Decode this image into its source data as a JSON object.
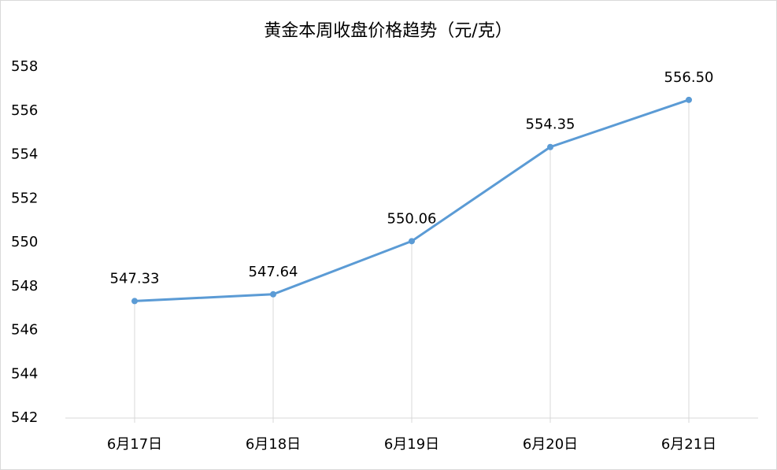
{
  "chart_data": {
    "type": "line",
    "title": "黄金本周收盘价格趋势（元/克）",
    "categories": [
      "6月17日",
      "6月18日",
      "6月19日",
      "6月20日",
      "6月21日"
    ],
    "values": [
      547.33,
      547.64,
      550.06,
      554.35,
      556.5
    ],
    "value_labels": [
      "547.33",
      "547.64",
      "550.06",
      "554.35",
      "556.50"
    ],
    "color": "#5b9bd5",
    "ylim": [
      542,
      558
    ],
    "yticks": [
      542,
      544,
      546,
      548,
      550,
      552,
      554,
      556,
      558
    ],
    "drop_lines": true
  }
}
